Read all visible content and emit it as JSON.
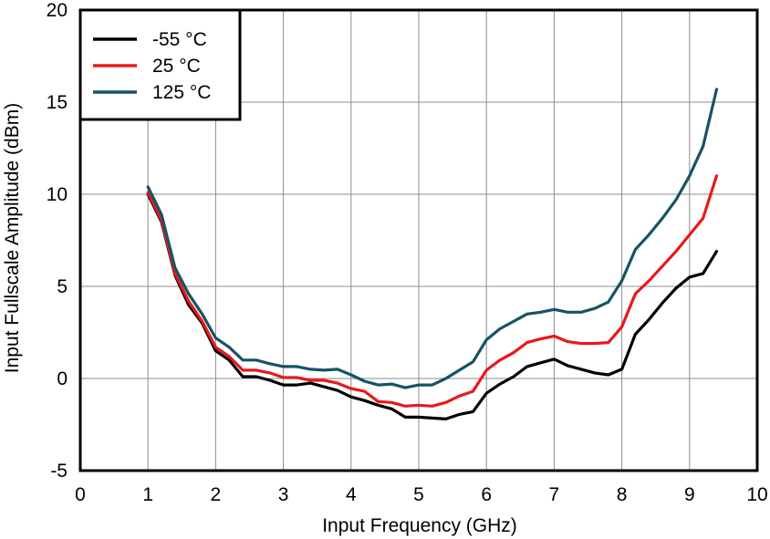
{
  "chart_data": {
    "type": "line",
    "xlabel": "Input Frequency (GHz)",
    "ylabel": "Input Fullscale Amplitude (dBm)",
    "xlim": [
      0,
      10
    ],
    "ylim": [
      -5,
      20
    ],
    "xticks": [
      0,
      1,
      2,
      3,
      4,
      5,
      6,
      7,
      8,
      9,
      10
    ],
    "yticks": [
      -5,
      0,
      5,
      10,
      15,
      20
    ],
    "grid": true,
    "legend_position": "top-left",
    "series": [
      {
        "name": "-55 °C",
        "color": "#000000",
        "x": [
          1.0,
          1.2,
          1.4,
          1.6,
          1.8,
          2.0,
          2.2,
          2.4,
          2.6,
          2.8,
          3.0,
          3.2,
          3.4,
          3.6,
          3.8,
          4.0,
          4.2,
          4.4,
          4.6,
          4.8,
          5.0,
          5.2,
          5.4,
          5.6,
          5.8,
          6.0,
          6.2,
          6.4,
          6.6,
          6.8,
          7.0,
          7.2,
          7.4,
          7.6,
          7.8,
          8.0,
          8.2,
          8.4,
          8.6,
          8.8,
          9.0,
          9.2,
          9.4
        ],
        "y": [
          10.0,
          8.5,
          5.6,
          4.0,
          3.0,
          1.5,
          1.0,
          0.1,
          0.1,
          -0.1,
          -0.35,
          -0.35,
          -0.25,
          -0.45,
          -0.65,
          -1.0,
          -1.2,
          -1.45,
          -1.65,
          -2.1,
          -2.1,
          -2.15,
          -2.2,
          -1.95,
          -1.8,
          -0.8,
          -0.3,
          0.1,
          0.65,
          0.85,
          1.05,
          0.7,
          0.5,
          0.3,
          0.2,
          0.5,
          2.4,
          3.2,
          4.1,
          4.9,
          5.5,
          5.7,
          6.9
        ]
      },
      {
        "name": "25 °C",
        "color": "#e8191c",
        "x": [
          1.0,
          1.2,
          1.4,
          1.6,
          1.8,
          2.0,
          2.2,
          2.4,
          2.6,
          2.8,
          3.0,
          3.2,
          3.4,
          3.6,
          3.8,
          4.0,
          4.2,
          4.4,
          4.6,
          4.8,
          5.0,
          5.2,
          5.4,
          5.6,
          5.8,
          6.0,
          6.2,
          6.4,
          6.6,
          6.8,
          7.0,
          7.2,
          7.4,
          7.6,
          7.8,
          8.0,
          8.2,
          8.4,
          8.6,
          8.8,
          9.0,
          9.2,
          9.4
        ],
        "y": [
          10.1,
          8.6,
          5.7,
          4.2,
          3.1,
          1.7,
          1.2,
          0.45,
          0.45,
          0.3,
          0.05,
          0.05,
          -0.1,
          -0.1,
          -0.25,
          -0.55,
          -0.7,
          -1.25,
          -1.3,
          -1.5,
          -1.45,
          -1.5,
          -1.3,
          -0.95,
          -0.7,
          0.45,
          1.0,
          1.4,
          1.95,
          2.15,
          2.3,
          2.0,
          1.9,
          1.9,
          1.95,
          2.8,
          4.6,
          5.3,
          6.1,
          6.9,
          7.8,
          8.7,
          11.0
        ]
      },
      {
        "name": "125 °C",
        "color": "#165366",
        "x": [
          1.0,
          1.2,
          1.4,
          1.6,
          1.8,
          2.0,
          2.2,
          2.4,
          2.6,
          2.8,
          3.0,
          3.2,
          3.4,
          3.6,
          3.8,
          4.0,
          4.2,
          4.4,
          4.6,
          4.8,
          5.0,
          5.2,
          5.4,
          5.6,
          5.8,
          6.0,
          6.2,
          6.4,
          6.6,
          6.8,
          7.0,
          7.2,
          7.4,
          7.6,
          7.8,
          8.0,
          8.2,
          8.4,
          8.6,
          8.8,
          9.0,
          9.2,
          9.4
        ],
        "y": [
          10.4,
          8.9,
          6.0,
          4.6,
          3.5,
          2.2,
          1.7,
          1.0,
          1.0,
          0.8,
          0.65,
          0.65,
          0.5,
          0.45,
          0.5,
          0.2,
          -0.15,
          -0.35,
          -0.3,
          -0.5,
          -0.35,
          -0.35,
          0.0,
          0.45,
          0.9,
          2.1,
          2.7,
          3.1,
          3.5,
          3.6,
          3.75,
          3.6,
          3.6,
          3.8,
          4.15,
          5.3,
          7.0,
          7.8,
          8.7,
          9.7,
          11.0,
          12.6,
          15.7
        ]
      }
    ]
  }
}
